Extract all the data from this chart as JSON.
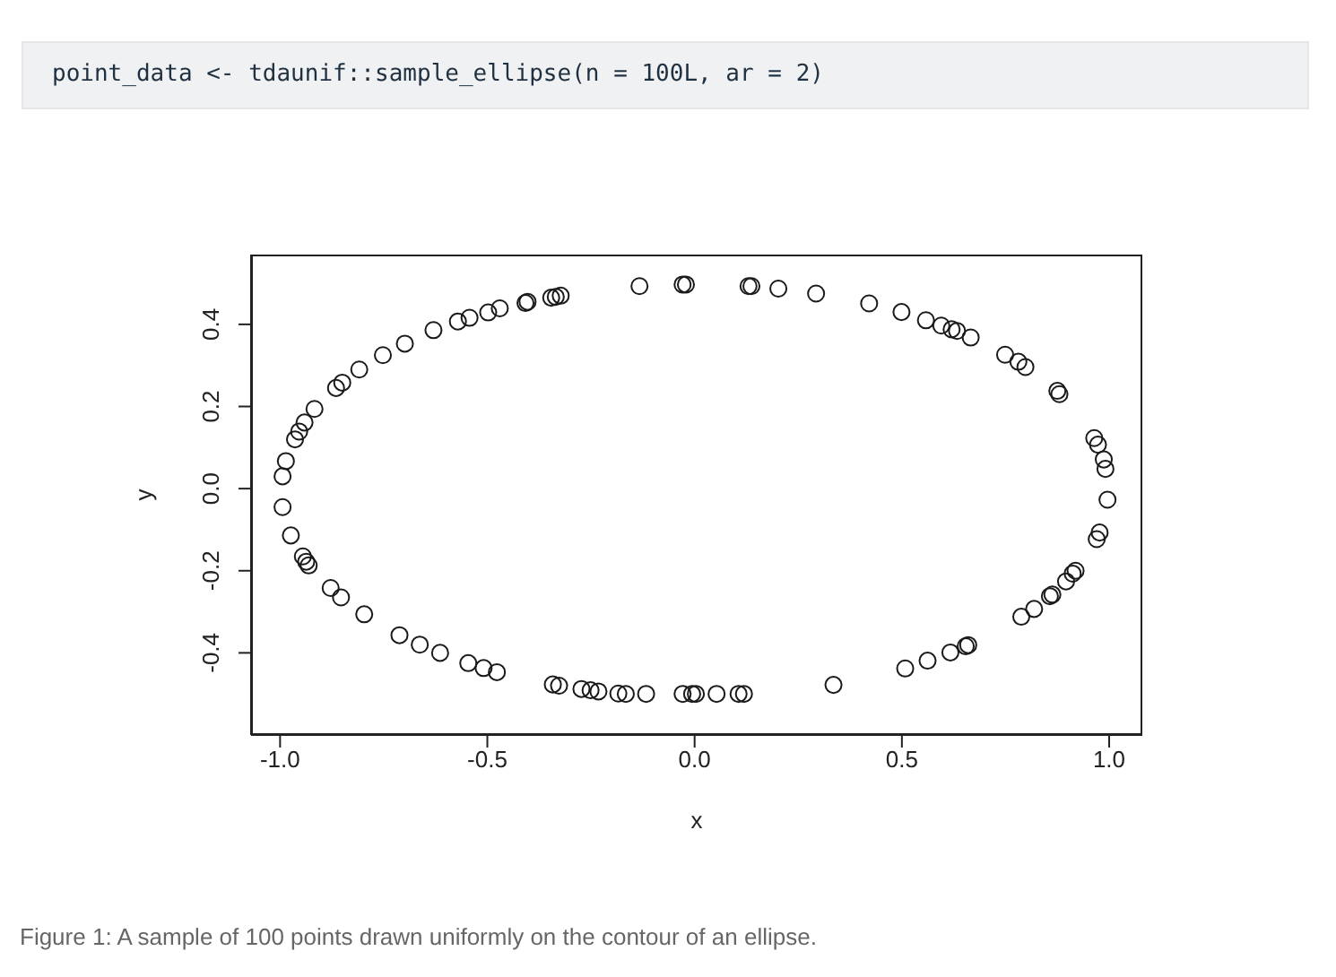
{
  "chart_data": {
    "type": "scatter",
    "annotations": [
      "point_data <- tdaunif::sample_ellipse(n = 100L, ar = 2)",
      "Figure 1: A sample of 100 points drawn uniformly on the contour of an ellipse."
    ],
    "xlabel": "x",
    "ylabel": "y",
    "x": [
      -0.994,
      -0.986,
      -0.964,
      -0.954,
      -0.941,
      -0.917,
      -0.865,
      -0.85,
      -0.809,
      -0.752,
      -0.699,
      -0.63,
      -0.571,
      -0.543,
      -0.498,
      -0.47,
      -0.408,
      -0.403,
      -0.346,
      -0.335,
      -0.323,
      -0.133,
      -0.029,
      -0.021,
      0.13,
      0.137,
      0.202,
      0.293,
      0.421,
      0.499,
      0.558,
      0.595,
      0.62,
      0.633,
      0.666,
      0.749,
      0.781,
      0.798,
      0.875,
      0.88,
      0.964,
      0.973,
      0.987,
      0.991,
      0.996,
      -0.994,
      -0.974,
      -0.945,
      -0.937,
      -0.931,
      -0.878,
      -0.853,
      -0.797,
      -0.712,
      -0.663,
      -0.614,
      -0.546,
      -0.509,
      -0.477,
      -0.342,
      -0.327,
      -0.273,
      -0.251,
      -0.232,
      -0.184,
      -0.166,
      -0.117,
      -0.029,
      -0.006,
      0.003,
      0.053,
      0.106,
      0.119,
      0.335,
      0.508,
      0.562,
      0.617,
      0.654,
      0.66,
      0.788,
      0.819,
      0.857,
      0.863,
      0.896,
      0.912,
      0.919,
      0.97,
      0.977
    ],
    "values": [
      0.03,
      0.067,
      0.12,
      0.139,
      0.161,
      0.194,
      0.245,
      0.258,
      0.29,
      0.325,
      0.353,
      0.386,
      0.407,
      0.416,
      0.429,
      0.439,
      0.452,
      0.455,
      0.465,
      0.467,
      0.47,
      0.493,
      0.497,
      0.497,
      0.493,
      0.493,
      0.487,
      0.475,
      0.451,
      0.43,
      0.41,
      0.397,
      0.388,
      0.384,
      0.368,
      0.326,
      0.309,
      0.296,
      0.238,
      0.23,
      0.123,
      0.107,
      0.071,
      0.048,
      -0.027,
      -0.045,
      -0.114,
      -0.165,
      -0.178,
      -0.187,
      -0.242,
      -0.265,
      -0.306,
      -0.357,
      -0.38,
      -0.4,
      -0.425,
      -0.437,
      -0.447,
      -0.477,
      -0.48,
      -0.488,
      -0.491,
      -0.494,
      -0.499,
      -0.5,
      -0.5,
      -0.5,
      -0.5,
      -0.5,
      -0.5,
      -0.5,
      -0.5,
      -0.478,
      -0.438,
      -0.419,
      -0.399,
      -0.384,
      -0.381,
      -0.312,
      -0.293,
      -0.262,
      -0.258,
      -0.226,
      -0.207,
      -0.2,
      -0.123,
      -0.107
    ],
    "color": "#1a1a1a",
    "marker": "circle",
    "xlim": [
      -1.07,
      1.08
    ],
    "ylim": [
      -0.6,
      0.57
    ],
    "xticks": [
      {
        "value": -1,
        "label": "-1.0"
      },
      {
        "value": -0.5,
        "label": "-0.5"
      },
      {
        "value": 0,
        "label": "0.0"
      },
      {
        "value": 0.5,
        "label": "0.5"
      },
      {
        "value": 1,
        "label": "1.0"
      }
    ],
    "yticks": [
      {
        "value": -0.4,
        "label": "-0.4"
      },
      {
        "value": -0.2,
        "label": "-0.2"
      },
      {
        "value": 0,
        "label": "0.0"
      },
      {
        "value": 0.2,
        "label": "0.2"
      },
      {
        "value": 0.4,
        "label": "0.4"
      }
    ],
    "grid": false
  }
}
